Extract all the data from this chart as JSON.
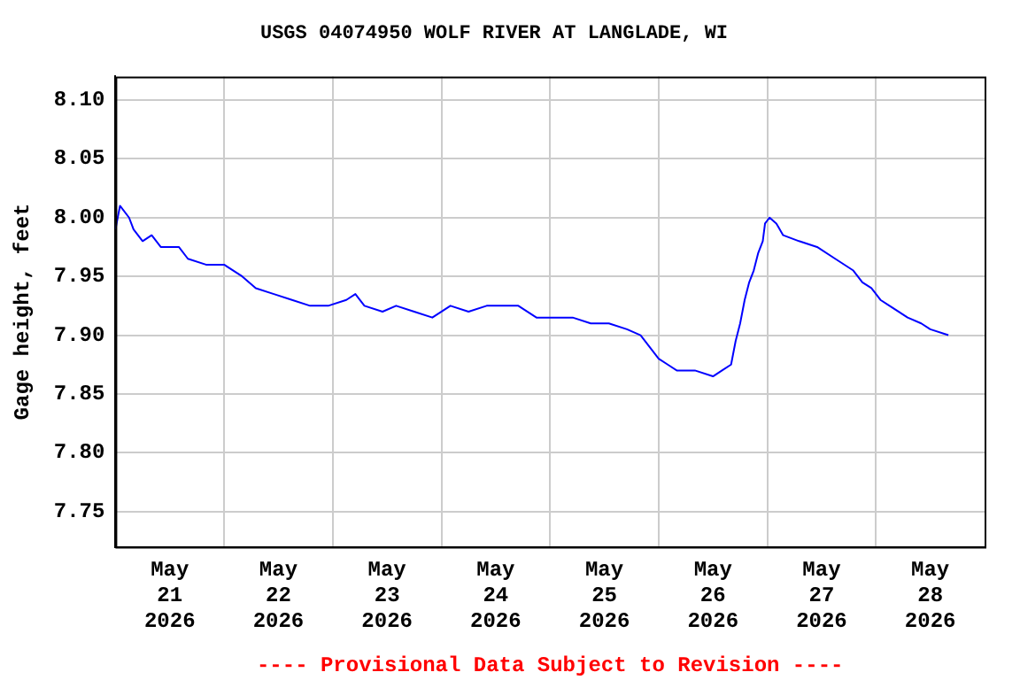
{
  "chart_data": {
    "type": "line",
    "title": "USGS 04074950 WOLF RIVER AT LANGLADE, WI",
    "ylabel": "Gage height, feet",
    "x": [
      "2026-05-21T00:00",
      "2026-05-21T01:00",
      "2026-05-21T03:00",
      "2026-05-21T04:00",
      "2026-05-21T06:00",
      "2026-05-21T08:00",
      "2026-05-21T10:00",
      "2026-05-21T14:00",
      "2026-05-21T16:00",
      "2026-05-21T20:00",
      "2026-05-22T00:00",
      "2026-05-22T04:00",
      "2026-05-22T07:00",
      "2026-05-22T11:00",
      "2026-05-22T15:00",
      "2026-05-22T19:00",
      "2026-05-22T23:00",
      "2026-05-23T03:00",
      "2026-05-23T05:00",
      "2026-05-23T07:00",
      "2026-05-23T11:00",
      "2026-05-23T14:00",
      "2026-05-23T18:00",
      "2026-05-23T22:00",
      "2026-05-24T02:00",
      "2026-05-24T06:00",
      "2026-05-24T10:00",
      "2026-05-24T13:00",
      "2026-05-24T17:00",
      "2026-05-24T21:00",
      "2026-05-25T01:00",
      "2026-05-25T05:00",
      "2026-05-25T09:00",
      "2026-05-25T13:00",
      "2026-05-25T17:00",
      "2026-05-25T20:00",
      "2026-05-25T22:00",
      "2026-05-26T00:00",
      "2026-05-26T02:00",
      "2026-05-26T04:00",
      "2026-05-26T08:00",
      "2026-05-26T12:00",
      "2026-05-26T14:00",
      "2026-05-26T16:00",
      "2026-05-26T17:00",
      "2026-05-26T18:00",
      "2026-05-26T19:00",
      "2026-05-26T20:00",
      "2026-05-26T21:00",
      "2026-05-26T22:00",
      "2026-05-26T23:00",
      "2026-05-26T23:30",
      "2026-05-27T00:30",
      "2026-05-27T02:00",
      "2026-05-27T03:30",
      "2026-05-27T07:00",
      "2026-05-27T11:00",
      "2026-05-27T15:00",
      "2026-05-27T19:00",
      "2026-05-27T21:00",
      "2026-05-27T23:00",
      "2026-05-28T01:00",
      "2026-05-28T03:00",
      "2026-05-28T07:00",
      "2026-05-28T10:00",
      "2026-05-28T12:00",
      "2026-05-28T16:00"
    ],
    "series": [
      {
        "color": "#0000ff",
        "values": [
          7.99,
          8.01,
          8.0,
          7.99,
          7.98,
          7.985,
          7.975,
          7.975,
          7.965,
          7.96,
          7.96,
          7.95,
          7.94,
          7.935,
          7.93,
          7.925,
          7.925,
          7.93,
          7.935,
          7.925,
          7.92,
          7.925,
          7.92,
          7.915,
          7.925,
          7.92,
          7.925,
          7.925,
          7.925,
          7.915,
          7.915,
          7.915,
          7.91,
          7.91,
          7.905,
          7.9,
          7.89,
          7.88,
          7.875,
          7.87,
          7.87,
          7.865,
          7.87,
          7.875,
          7.895,
          7.91,
          7.93,
          7.945,
          7.955,
          7.97,
          7.98,
          7.995,
          8.0,
          7.995,
          7.985,
          7.98,
          7.975,
          7.965,
          7.955,
          7.945,
          7.94,
          7.93,
          7.925,
          7.915,
          7.91,
          7.905,
          7.9
        ]
      }
    ],
    "xlim": [
      "2026-05-21T00:00",
      "2026-05-29T00:00"
    ],
    "xticks": [
      {
        "value": "2026-05-21T12:00",
        "label": "May 21 2026"
      },
      {
        "value": "2026-05-22T00:00",
        "label": null
      },
      {
        "value": "2026-05-22T12:00",
        "label": "May 22 2026"
      },
      {
        "value": "2026-05-23T00:00",
        "label": null
      },
      {
        "value": "2026-05-23T12:00",
        "label": "May 23 2026"
      },
      {
        "value": "2026-05-24T00:00",
        "label": null
      },
      {
        "value": "2026-05-24T12:00",
        "label": "May 24 2026"
      },
      {
        "value": "2026-05-25T00:00",
        "label": null
      },
      {
        "value": "2026-05-25T12:00",
        "label": "May 25 2026"
      },
      {
        "value": "2026-05-26T00:00",
        "label": null
      },
      {
        "value": "2026-05-26T12:00",
        "label": "May 26 2026"
      },
      {
        "value": "2026-05-27T00:00",
        "label": null
      },
      {
        "value": "2026-05-27T12:00",
        "label": "May 27 2026"
      },
      {
        "value": "2026-05-28T00:00",
        "label": null
      },
      {
        "value": "2026-05-28T12:00",
        "label": "May 28 2026"
      }
    ],
    "ylim": [
      7.72,
      8.12
    ],
    "yticks": [
      7.75,
      {
        "value": 7.8,
        "label": "7.80"
      },
      7.85,
      {
        "value": 7.9,
        "label": "7.90"
      },
      7.95,
      {
        "value": 8.0,
        "label": "8.00"
      },
      8.05,
      {
        "value": 8.1,
        "label": "8.10"
      }
    ],
    "grid": true,
    "marker": "none",
    "line_style": "solid",
    "annotations": [
      "---- Provisional Data Subject to Revision ----"
    ]
  }
}
